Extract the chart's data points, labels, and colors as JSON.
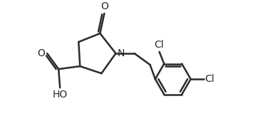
{
  "line_color": "#2a2a2a",
  "line_width": 1.8,
  "font_size": 10,
  "fig_width": 3.69,
  "fig_height": 1.7,
  "dpi": 100,
  "xlim": [
    -1.0,
    5.8
  ],
  "ylim": [
    0.2,
    4.2
  ]
}
